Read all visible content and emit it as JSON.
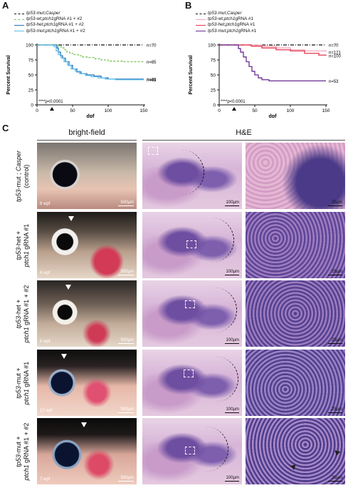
{
  "panels": {
    "A": {
      "letter": "A",
      "legend": [
        {
          "gene1": "tp53",
          "geno1": "-mut; ",
          "gene2": "Casper",
          "rest": "",
          "color": "#111111",
          "style": "dash-dot"
        },
        {
          "gene1": "tp53",
          "geno1": "-wt; ",
          "gene2": "ptch1",
          "rest": " gRNA #1 + #2",
          "color": "#7cc35a",
          "style": "dashed"
        },
        {
          "gene1": "tp53",
          "geno1": "-het; ",
          "gene2": "ptch1",
          "rest": " gRNA #1 + #2",
          "color": "#2a6fb6",
          "style": "solid"
        },
        {
          "gene1": "tp53",
          "geno1": "-mut; ",
          "gene2": "ptch1",
          "rest": " gRNA #1 + #2",
          "color": "#5bc0e8",
          "style": "solid"
        }
      ],
      "stat": "****p<0.0001",
      "chart_data": {
        "type": "line",
        "ylabel": "Percent Survival",
        "xlabel": "dpf",
        "xlim": [
          0,
          150
        ],
        "ylim": [
          0,
          100
        ],
        "xticks": [
          0,
          50,
          100,
          150
        ],
        "yticks": [
          0,
          25,
          50,
          75,
          100
        ],
        "arrow_x": 21,
        "series": [
          {
            "n_label": "n=70",
            "color": "#111111",
            "dash": "5,2,1,2",
            "points": [
              [
                0,
                100
              ],
              [
                150,
                100
              ]
            ]
          },
          {
            "n_label": "n=85",
            "color": "#7cc35a",
            "dash": "3,2",
            "points": [
              [
                0,
                100
              ],
              [
                28,
                100
              ],
              [
                30,
                98
              ],
              [
                34,
                95
              ],
              [
                38,
                92
              ],
              [
                42,
                88
              ],
              [
                46,
                86
              ],
              [
                52,
                84
              ],
              [
                58,
                82
              ],
              [
                64,
                80
              ],
              [
                72,
                79
              ],
              [
                80,
                77
              ],
              [
                90,
                75
              ],
              [
                100,
                73
              ],
              [
                120,
                72
              ],
              [
                150,
                72
              ]
            ]
          },
          {
            "n_label": "n=41",
            "color": "#2a6fb6",
            "dash": "",
            "points": [
              [
                0,
                100
              ],
              [
                26,
                100
              ],
              [
                28,
                95
              ],
              [
                30,
                88
              ],
              [
                33,
                82
              ],
              [
                36,
                78
              ],
              [
                40,
                72
              ],
              [
                45,
                66
              ],
              [
                50,
                60
              ],
              [
                56,
                55
              ],
              [
                62,
                52
              ],
              [
                70,
                50
              ],
              [
                80,
                48
              ],
              [
                90,
                45
              ],
              [
                100,
                43
              ],
              [
                120,
                43
              ],
              [
                150,
                43
              ]
            ]
          },
          {
            "n_label": "n=89",
            "color": "#5bc0e8",
            "dash": "",
            "points": [
              [
                0,
                100
              ],
              [
                22,
                100
              ],
              [
                24,
                97
              ],
              [
                27,
                90
              ],
              [
                30,
                84
              ],
              [
                34,
                78
              ],
              [
                38,
                72
              ],
              [
                43,
                66
              ],
              [
                48,
                60
              ],
              [
                54,
                56
              ],
              [
                60,
                52
              ],
              [
                68,
                49
              ],
              [
                76,
                47
              ],
              [
                86,
                45
              ],
              [
                96,
                43
              ],
              [
                110,
                42
              ],
              [
                150,
                42
              ]
            ]
          }
        ]
      }
    },
    "B": {
      "letter": "B",
      "legend": [
        {
          "gene1": "tp53",
          "geno1": "-mut; ",
          "gene2": "Casper",
          "rest": "",
          "color": "#111111",
          "style": "dash-dot"
        },
        {
          "gene1": "tp53",
          "geno1": "-wt; ",
          "gene2": "ptch1",
          "rest": " gRNA #1",
          "color": "#f4a9b8",
          "style": "solid"
        },
        {
          "gene1": "tp53",
          "geno1": "-het; ",
          "gene2": "ptch1",
          "rest": " gRNA #1",
          "color": "#e8344e",
          "style": "solid"
        },
        {
          "gene1": "tp53",
          "geno1": "-mut; ",
          "gene2": "ptch1",
          "rest": " gRNA #1",
          "color": "#6a2c91",
          "style": "solid"
        }
      ],
      "stat": "****p<0.0001",
      "chart_data": {
        "type": "line",
        "ylabel": "Percent Survival",
        "xlabel": "dpf",
        "xlim": [
          0,
          150
        ],
        "ylim": [
          0,
          100
        ],
        "xticks": [
          0,
          50,
          100,
          150
        ],
        "yticks": [
          0,
          25,
          50,
          75,
          100
        ],
        "arrow_x": 21,
        "series": [
          {
            "n_label": "n=70",
            "color": "#111111",
            "dash": "5,2,1,2",
            "points": [
              [
                0,
                100
              ],
              [
                150,
                100
              ]
            ]
          },
          {
            "n_label": "n=121",
            "color": "#f4a9b8",
            "dash": "",
            "points": [
              [
                0,
                100
              ],
              [
                40,
                100
              ],
              [
                60,
                98
              ],
              [
                80,
                95
              ],
              [
                100,
                92
              ],
              [
                120,
                90
              ],
              [
                150,
                88
              ]
            ]
          },
          {
            "n_label": "n=100",
            "color": "#e8344e",
            "dash": "",
            "points": [
              [
                0,
                100
              ],
              [
                30,
                100
              ],
              [
                45,
                98
              ],
              [
                60,
                95
              ],
              [
                80,
                92
              ],
              [
                100,
                90
              ],
              [
                120,
                86
              ],
              [
                140,
                83
              ],
              [
                150,
                82
              ]
            ]
          },
          {
            "n_label": "n=53",
            "color": "#6a2c91",
            "dash": "",
            "points": [
              [
                0,
                100
              ],
              [
                24,
                100
              ],
              [
                27,
                94
              ],
              [
                30,
                88
              ],
              [
                34,
                80
              ],
              [
                38,
                72
              ],
              [
                42,
                64
              ],
              [
                46,
                56
              ],
              [
                50,
                50
              ],
              [
                55,
                45
              ],
              [
                60,
                42
              ],
              [
                70,
                40
              ],
              [
                90,
                40
              ],
              [
                150,
                40
              ]
            ]
          }
        ]
      }
    },
    "C": {
      "letter": "C",
      "col_brightfield": "bright-field",
      "col_he": "H&E",
      "rows": [
        {
          "label_gene1": "tp53",
          "label_rest1": "-mut ; ",
          "label_gene2": "Casper",
          "label_line2": "(control)",
          "label_rest2": "",
          "wpf": "8 wpf",
          "bf_scale": "500µm",
          "he_scale": "100µm",
          "zoom_scale": "25µm"
        },
        {
          "label_gene1": "tp53",
          "label_rest1": "-het +",
          "label_gene2": "ptch1",
          "label_line2": "",
          "label_rest2": " gRNA #1",
          "wpf": "6 wpf",
          "bf_scale": "500µm",
          "he_scale": "100µm",
          "zoom_scale": "25µm"
        },
        {
          "label_gene1": "tp53",
          "label_rest1": "-het +",
          "label_gene2": "ptch1",
          "label_line2": "",
          "label_rest2": " gRNA #1 + #2",
          "wpf": "6 wpf",
          "bf_scale": "500µm",
          "he_scale": "100µm",
          "zoom_scale": "25µm"
        },
        {
          "label_gene1": "tp53",
          "label_rest1": "-mut +",
          "label_gene2": "ptch1",
          "label_line2": "",
          "label_rest2": " gRNA #1",
          "wpf": "12 wpf",
          "bf_scale": "500µm",
          "he_scale": "100µm",
          "zoom_scale": "25µm"
        },
        {
          "label_gene1": "tp53",
          "label_rest1": "-mut +",
          "label_gene2": "ptch1",
          "label_line2": "",
          "label_rest2": " gRNA #1 + #2",
          "wpf": "7 wpf",
          "bf_scale": "500µm",
          "he_scale": "100µm",
          "zoom_scale": "25µm"
        }
      ]
    }
  }
}
